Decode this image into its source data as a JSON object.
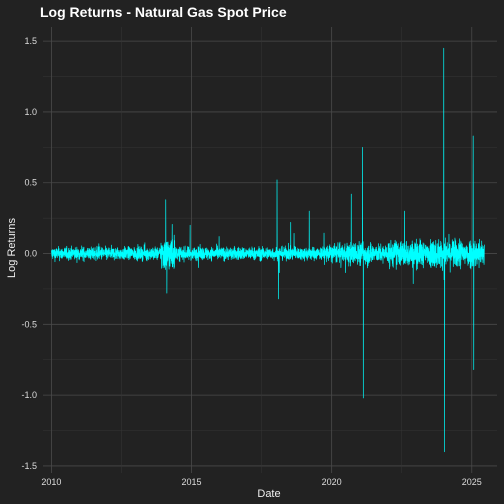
{
  "chart_data": {
    "type": "line",
    "title": "Log Returns - Natural Gas Spot Price",
    "xlabel": "Date",
    "ylabel": "Log Returns",
    "x_range": [
      2009.7,
      2025.9
    ],
    "ylim": [
      -1.55,
      1.6
    ],
    "x_ticks": [
      2010,
      2015,
      2020,
      2025
    ],
    "y_ticks": [
      -1.5,
      -1.0,
      -0.5,
      0.0,
      0.5,
      1.0,
      1.5
    ],
    "y_tick_labels": [
      "-1.5",
      "-1.0",
      "-0.5",
      "0.0",
      "0.5",
      "1.0",
      "1.5"
    ],
    "x_tick_labels": [
      "2010",
      "2015",
      "2020",
      "2025"
    ],
    "grid": true,
    "line_color": "#00FFFF",
    "series": [
      {
        "x_start": 2010.0,
        "x_end": 2025.45,
        "notable_points": [
          {
            "x": 2014.08,
            "y": 0.38
          },
          {
            "x": 2014.12,
            "y": -0.28
          },
          {
            "x": 2014.95,
            "y": 0.2
          },
          {
            "x": 2018.05,
            "y": 0.52
          },
          {
            "x": 2018.1,
            "y": -0.32
          },
          {
            "x": 2021.1,
            "y": 0.75
          },
          {
            "x": 2021.13,
            "y": -1.02
          },
          {
            "x": 2020.7,
            "y": 0.42
          },
          {
            "x": 2024.0,
            "y": 1.45
          },
          {
            "x": 2024.03,
            "y": -1.4
          },
          {
            "x": 2025.05,
            "y": 0.83
          },
          {
            "x": 2025.07,
            "y": -0.82
          },
          {
            "x": 2022.6,
            "y": 0.3
          },
          {
            "x": 2019.2,
            "y": 0.3
          }
        ]
      }
    ]
  }
}
